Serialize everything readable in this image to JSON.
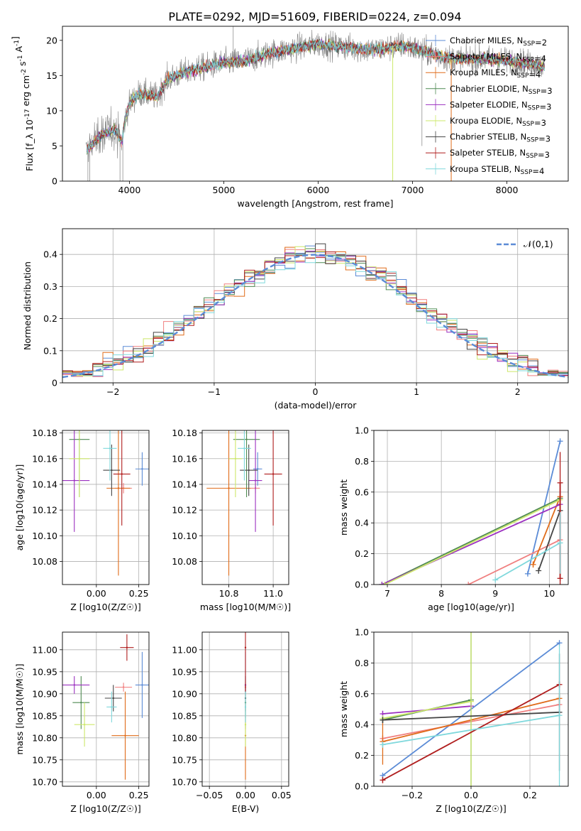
{
  "figure": {
    "title": "PLATE=0292, MJD=51609, FIBERID=0224, z=0.094"
  },
  "series_styles": [
    {
      "name": "Chabrier MILES, N_SSP=2",
      "color": "#5b8bd6"
    },
    {
      "name": "Salpeter MILES, N_SSP=4",
      "color": "#f07f7f"
    },
    {
      "name": "Kroupa MILES, N_SSP=4",
      "color": "#e06c1a"
    },
    {
      "name": "Chabrier ELODIE, N_SSP=3",
      "color": "#4f8a52"
    },
    {
      "name": "Salpeter ELODIE, N_SSP=3",
      "color": "#9b30c0"
    },
    {
      "name": "Kroupa ELODIE, N_SSP=3",
      "color": "#cde86a"
    },
    {
      "name": "Chabrier STELIB, N_SSP=3",
      "color": "#444444"
    },
    {
      "name": "Salpeter STELIB, N_SSP=3",
      "color": "#b01e1e"
    },
    {
      "name": "Kroupa STELIB, N_SSP=4",
      "color": "#7fd8dc"
    }
  ],
  "chart_data": [
    {
      "id": "spectrum",
      "type": "line",
      "title": "PLATE=0292, MJD=51609, FIBERID=0224, z=0.094",
      "xlabel": "wavelength [Angstrom, rest frame]",
      "ylabel": "Flux [f_λ 10^-17 erg cm^-2 s^-1 A^-1]",
      "xlim": [
        3290,
        8650
      ],
      "ylim": [
        0,
        22
      ],
      "xticks": [
        4000,
        5000,
        6000,
        7000,
        8000
      ],
      "yticks": [
        0,
        5,
        10,
        15,
        20
      ],
      "grid": false,
      "legend": {
        "position": "top-right",
        "entries": [
          "Chabrier MILES, N_SSP=2",
          "Salpeter MILES, N_SSP=4",
          "Kroupa MILES, N_SSP=4",
          "Chabrier ELODIE, N_SSP=3",
          "Salpeter ELODIE, N_SSP=3",
          "Kroupa ELODIE, N_SSP=3",
          "Chabrier STELIB, N_SSP=3",
          "Salpeter STELIB, N_SSP=3",
          "Kroupa STELIB, N_SSP=4"
        ]
      },
      "continuum": [
        [
          3550,
          4.5
        ],
        [
          3700,
          6.5
        ],
        [
          3850,
          7.5
        ],
        [
          3920,
          5.5
        ],
        [
          3950,
          8.5
        ],
        [
          4000,
          11
        ],
        [
          4100,
          12.5
        ],
        [
          4300,
          12
        ],
        [
          4400,
          14.5
        ],
        [
          4600,
          15.5
        ],
        [
          4800,
          16.2
        ],
        [
          5000,
          16.8
        ],
        [
          5200,
          17.0
        ],
        [
          5500,
          18.2
        ],
        [
          5800,
          19.0
        ],
        [
          6000,
          19.5
        ],
        [
          6300,
          19.0
        ],
        [
          6600,
          18.6
        ],
        [
          6900,
          19.3
        ],
        [
          7100,
          18.5
        ],
        [
          7400,
          17.4
        ],
        [
          7800,
          17.3
        ],
        [
          8100,
          17.0
        ],
        [
          8400,
          16.3
        ]
      ]
    },
    {
      "id": "residuals",
      "type": "bar",
      "xlabel": "(data-model)/error",
      "ylabel": "Normed distribution",
      "xlim": [
        -2.5,
        2.5
      ],
      "ylim": [
        0,
        0.48
      ],
      "xticks": [
        -2,
        -1,
        0,
        1,
        2
      ],
      "yticks": [
        0.0,
        0.1,
        0.2,
        0.3,
        0.4
      ],
      "grid": true,
      "bin_width": 0.1,
      "bin_start": -2.5,
      "legend": {
        "position": "top-right",
        "entries": [
          "𝒩(0,1)"
        ]
      },
      "reference_curve": {
        "name": "𝒩(0,1)",
        "mean": 0,
        "sigma": 1,
        "style": "dashed",
        "color": "#5b8bd6"
      }
    },
    {
      "id": "age_vs_Z",
      "type": "scatter",
      "xlabel": "Z [log10(Z/Z☉)]",
      "ylabel": "age [log10(age/yr)]",
      "xlim": [
        -0.2,
        0.31
      ],
      "ylim": [
        10.062,
        10.182
      ],
      "xticks": [
        0.0,
        0.25
      ],
      "xticklabels": [
        "0.00",
        "0.25"
      ],
      "yticks": [
        10.08,
        10.1,
        10.12,
        10.14,
        10.16,
        10.18
      ],
      "yticklabels": [
        "10.08",
        "10.10",
        "10.12",
        "10.14",
        "10.16",
        "10.18"
      ],
      "grid": true,
      "points": [
        {
          "x": 0.27,
          "y": 10.152,
          "xerr": 0.04,
          "yerr": 0.013
        },
        {
          "x": 0.16,
          "y": 10.137,
          "xerr": 0.05,
          "yerr": 0.004
        },
        {
          "x": 0.13,
          "y": 10.137,
          "xerr": 0.07,
          "yerr": 0.068
        },
        {
          "x": -0.1,
          "y": 10.175,
          "xerr": 0.06,
          "yerr": 0.045
        },
        {
          "x": -0.13,
          "y": 10.143,
          "xerr": 0.09,
          "yerr": 0.04
        },
        {
          "x": -0.1,
          "y": 10.16,
          "xerr": 0.06,
          "yerr": 0.03
        },
        {
          "x": 0.09,
          "y": 10.151,
          "xerr": 0.05,
          "yerr": 0.02
        },
        {
          "x": 0.15,
          "y": 10.148,
          "xerr": 0.05,
          "yerr": 0.04
        },
        {
          "x": 0.08,
          "y": 10.168,
          "xerr": 0.04,
          "yerr": 0.025
        }
      ]
    },
    {
      "id": "age_vs_mass",
      "type": "scatter",
      "xlabel": "mass [log10(M/M☉)]",
      "ylabel": "",
      "xlim": [
        10.68,
        11.07
      ],
      "ylim": [
        10.062,
        10.182
      ],
      "xticks": [
        10.8,
        11.0
      ],
      "xticklabels": [
        "10.8",
        "11.0"
      ],
      "yticks": [
        10.08,
        10.1,
        10.12,
        10.14,
        10.16,
        10.18
      ],
      "yticklabels": [
        "10.08",
        "10.10",
        "10.12",
        "10.14",
        "10.16",
        "10.18"
      ],
      "grid": true,
      "points": [
        {
          "x": 10.93,
          "y": 10.152,
          "xerr": 0.02,
          "yerr": 0.013
        },
        {
          "x": 10.92,
          "y": 10.137,
          "xerr": 0.02,
          "yerr": 0.004
        },
        {
          "x": 10.8,
          "y": 10.137,
          "xerr": 0.1,
          "yerr": 0.068
        },
        {
          "x": 10.88,
          "y": 10.175,
          "xerr": 0.06,
          "yerr": 0.045
        },
        {
          "x": 10.92,
          "y": 10.143,
          "xerr": 0.03,
          "yerr": 0.04
        },
        {
          "x": 10.83,
          "y": 10.16,
          "xerr": 0.03,
          "yerr": 0.03
        },
        {
          "x": 10.89,
          "y": 10.151,
          "xerr": 0.04,
          "yerr": 0.02
        },
        {
          "x": 11.0,
          "y": 10.148,
          "xerr": 0.04,
          "yerr": 0.04
        },
        {
          "x": 10.87,
          "y": 10.168,
          "xerr": 0.03,
          "yerr": 0.025
        }
      ]
    },
    {
      "id": "weight_vs_age",
      "type": "line",
      "xlabel": "age [log10(age/yr)]",
      "ylabel": "mass weight",
      "xlim": [
        6.75,
        10.35
      ],
      "ylim": [
        0,
        1
      ],
      "xticks": [
        7,
        8,
        9,
        10
      ],
      "yticks": [
        0.0,
        0.2,
        0.4,
        0.6,
        0.8,
        1.0
      ],
      "yticklabels": [
        "0.0",
        "0.2",
        "0.4",
        "0.6",
        "0.8",
        "1.0"
      ],
      "grid": true,
      "series": [
        {
          "x": [
            9.6,
            10.2
          ],
          "y": [
            0.07,
            0.93
          ],
          "yerr": [
            0.01,
            0.01
          ]
        },
        {
          "x": [
            8.5,
            10.2
          ],
          "y": [
            0.0,
            0.29
          ],
          "yerr": [
            0.0,
            0.25
          ]
        },
        {
          "x": [
            9.7,
            10.2
          ],
          "y": [
            0.13,
            0.57
          ],
          "yerr": [
            0.02,
            0.05
          ]
        },
        {
          "x": [
            6.9,
            10.2
          ],
          "y": [
            0.0,
            0.56
          ],
          "yerr": [
            0.0,
            0.04
          ]
        },
        {
          "x": [
            6.9,
            10.2
          ],
          "y": [
            0.0,
            0.52
          ],
          "yerr": [
            0.0,
            0.04
          ]
        },
        {
          "x": [
            6.95,
            10.2
          ],
          "y": [
            0.0,
            0.55
          ],
          "yerr": [
            0.0,
            0.03
          ]
        },
        {
          "x": [
            9.8,
            10.2
          ],
          "y": [
            0.09,
            0.48
          ],
          "yerr": [
            0.02,
            0.1
          ]
        },
        {
          "x": [
            10.2,
            10.2
          ],
          "y": [
            0.04,
            0.66
          ],
          "yerr": [
            0.2,
            0.2
          ]
        },
        {
          "x": [
            9.0,
            10.2
          ],
          "y": [
            0.03,
            0.27
          ],
          "yerr": [
            0.0,
            0.2
          ]
        }
      ]
    },
    {
      "id": "mass_vs_Z",
      "type": "scatter",
      "xlabel": "Z [log10(Z/Z☉)]",
      "ylabel": "mass [log10(M/M☉)]",
      "xlim": [
        -0.2,
        0.31
      ],
      "ylim": [
        10.69,
        11.04
      ],
      "xticks": [
        0.0,
        0.25
      ],
      "xticklabels": [
        "0.00",
        "0.25"
      ],
      "yticks": [
        10.7,
        10.75,
        10.8,
        10.85,
        10.9,
        10.95,
        11.0
      ],
      "yticklabels": [
        "10.70",
        "10.75",
        "10.80",
        "10.85",
        "10.90",
        "10.95",
        "11.00"
      ],
      "grid": true,
      "points": [
        {
          "x": 0.27,
          "y": 10.92,
          "xerr": 0.04,
          "yerr": 0.075
        },
        {
          "x": 0.16,
          "y": 10.915,
          "xerr": 0.05,
          "yerr": 0.01
        },
        {
          "x": 0.17,
          "y": 10.805,
          "xerr": 0.08,
          "yerr": 0.1
        },
        {
          "x": -0.09,
          "y": 10.88,
          "xerr": 0.05,
          "yerr": 0.06
        },
        {
          "x": -0.13,
          "y": 10.92,
          "xerr": 0.09,
          "yerr": 0.02
        },
        {
          "x": -0.07,
          "y": 10.83,
          "xerr": 0.06,
          "yerr": 0.05
        },
        {
          "x": 0.1,
          "y": 10.89,
          "xerr": 0.05,
          "yerr": 0.03
        },
        {
          "x": 0.18,
          "y": 11.005,
          "xerr": 0.04,
          "yerr": 0.03
        },
        {
          "x": 0.09,
          "y": 10.87,
          "xerr": 0.03,
          "yerr": 0.035
        }
      ]
    },
    {
      "id": "mass_vs_ebv",
      "type": "scatter",
      "xlabel": "E(B-V)",
      "ylabel": "",
      "xlim": [
        -0.06,
        0.06
      ],
      "ylim": [
        10.69,
        11.04
      ],
      "xticks": [
        -0.05,
        0.0,
        0.05
      ],
      "xticklabels": [
        "−0.05",
        "0.00",
        "0.05"
      ],
      "yticks": [
        10.7,
        10.75,
        10.8,
        10.85,
        10.9,
        10.95,
        11.0
      ],
      "yticklabels": [
        "10.70",
        "10.75",
        "10.80",
        "10.85",
        "10.90",
        "10.95",
        "11.00"
      ],
      "grid": true,
      "points": [
        {
          "x": 0,
          "y": 10.92,
          "xerr": 0,
          "yerr": 0.075
        },
        {
          "x": 0,
          "y": 10.915,
          "xerr": 0,
          "yerr": 0.01
        },
        {
          "x": 0,
          "y": 10.805,
          "xerr": 0,
          "yerr": 0.1
        },
        {
          "x": 0,
          "y": 10.88,
          "xerr": 0,
          "yerr": 0.06
        },
        {
          "x": 0,
          "y": 10.92,
          "xerr": 0,
          "yerr": 0.02
        },
        {
          "x": 0,
          "y": 10.83,
          "xerr": 0,
          "yerr": 0.05
        },
        {
          "x": 0,
          "y": 10.89,
          "xerr": 0,
          "yerr": 0.03
        },
        {
          "x": 0,
          "y": 11.005,
          "xerr": 0,
          "yerr": 0.1
        },
        {
          "x": 0,
          "y": 10.87,
          "xerr": 0,
          "yerr": 0.035
        }
      ]
    },
    {
      "id": "weight_vs_Z",
      "type": "line",
      "xlabel": "Z [log10(Z/Z☉)]",
      "ylabel": "mass weight",
      "xlim": [
        -0.33,
        0.33
      ],
      "ylim": [
        0,
        1
      ],
      "xticks": [
        -0.2,
        0.0,
        0.2
      ],
      "xticklabels": [
        "−0.2",
        "0.0",
        "0.2"
      ],
      "yticks": [
        0.0,
        0.2,
        0.4,
        0.6,
        0.8,
        1.0
      ],
      "yticklabels": [
        "0.0",
        "0.2",
        "0.4",
        "0.6",
        "0.8",
        "1.0"
      ],
      "grid": true,
      "series": [
        {
          "x": [
            -0.3,
            0.3
          ],
          "y": [
            0.07,
            0.93
          ],
          "yerr": [
            0.01,
            0.01
          ]
        },
        {
          "x": [
            -0.3,
            0.3
          ],
          "y": [
            0.31,
            0.53
          ],
          "yerr": [
            0.02,
            0.03
          ]
        },
        {
          "x": [
            -0.3,
            0.3
          ],
          "y": [
            0.29,
            0.57
          ],
          "yerr": [
            0.15,
            0.03
          ]
        },
        {
          "x": [
            -0.3,
            0.0
          ],
          "y": [
            0.43,
            0.56
          ],
          "yerr": [
            0.02,
            0.56
          ]
        },
        {
          "x": [
            -0.3,
            0.0
          ],
          "y": [
            0.47,
            0.52
          ],
          "yerr": [
            0.02,
            0.02
          ]
        },
        {
          "x": [
            -0.3,
            0.0
          ],
          "y": [
            0.44,
            0.55
          ],
          "yerr": [
            0.02,
            0.55
          ]
        },
        {
          "x": [
            -0.3,
            0.3
          ],
          "y": [
            0.43,
            0.48
          ],
          "yerr": [
            0.02,
            0.38
          ]
        },
        {
          "x": [
            -0.3,
            0.3
          ],
          "y": [
            0.04,
            0.66
          ],
          "yerr": [
            0.02,
            0.02
          ]
        },
        {
          "x": [
            -0.3,
            0.3
          ],
          "y": [
            0.27,
            0.46
          ],
          "yerr": [
            0.02,
            0.46
          ]
        }
      ]
    }
  ]
}
